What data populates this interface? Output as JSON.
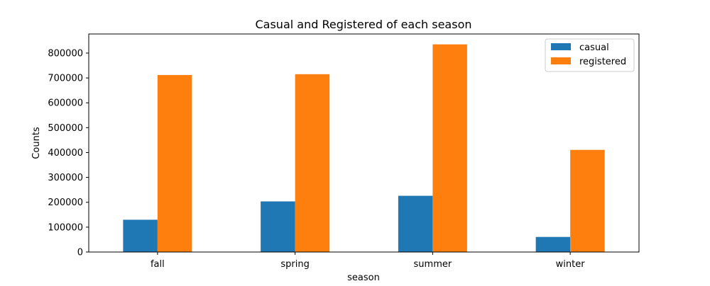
{
  "chart_data": {
    "type": "bar",
    "title": "Casual and Registered of each season",
    "xlabel": "season",
    "ylabel": "Counts",
    "categories": [
      "fall",
      "spring",
      "summer",
      "winter"
    ],
    "series": [
      {
        "name": "casual",
        "color": "#1f77b4",
        "values": [
          129782,
          203522,
          226091,
          60622
        ]
      },
      {
        "name": "registered",
        "color": "#ff7f0e",
        "values": [
          711831,
          715067,
          835038,
          410726
        ]
      }
    ],
    "ylim": [
      0,
      876790
    ],
    "yticks": [
      0,
      100000,
      200000,
      300000,
      400000,
      500000,
      600000,
      700000,
      800000
    ],
    "ytick_labels": [
      "0",
      "100000",
      "200000",
      "300000",
      "400000",
      "500000",
      "600000",
      "700000",
      "800000"
    ],
    "grid": false,
    "legend_position": "top-right"
  }
}
